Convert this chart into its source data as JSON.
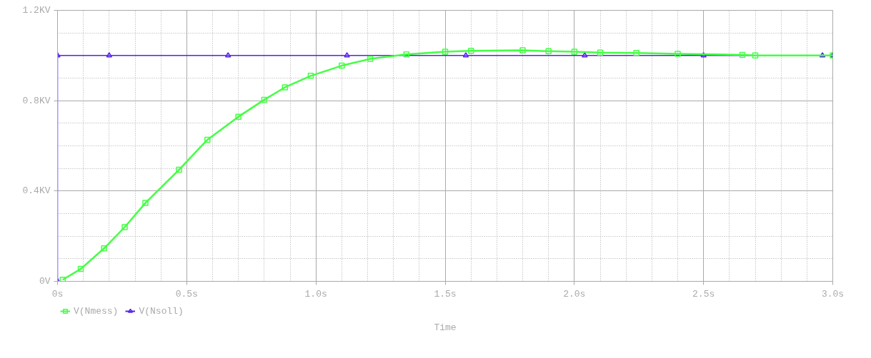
{
  "chart_data": {
    "type": "line",
    "xlabel": "Time",
    "xlim": [
      0,
      3.0
    ],
    "ylim": [
      0,
      1.2
    ],
    "xticks": [
      {
        "value": 0,
        "label": "0s"
      },
      {
        "value": 0.1,
        "label": null
      },
      {
        "value": 0.2,
        "label": null
      },
      {
        "value": 0.3,
        "label": null
      },
      {
        "value": 0.4,
        "label": null
      },
      {
        "value": 0.5,
        "label": "0.5s"
      },
      {
        "value": 0.6,
        "label": null
      },
      {
        "value": 0.7,
        "label": null
      },
      {
        "value": 0.8,
        "label": null
      },
      {
        "value": 0.9,
        "label": null
      },
      {
        "value": 1.0,
        "label": "1.0s"
      },
      {
        "value": 1.1,
        "label": null
      },
      {
        "value": 1.2,
        "label": null
      },
      {
        "value": 1.3,
        "label": null
      },
      {
        "value": 1.4,
        "label": null
      },
      {
        "value": 1.5,
        "label": "1.5s"
      },
      {
        "value": 1.6,
        "label": null
      },
      {
        "value": 1.7,
        "label": null
      },
      {
        "value": 1.8,
        "label": null
      },
      {
        "value": 1.9,
        "label": null
      },
      {
        "value": 2.0,
        "label": "2.0s"
      },
      {
        "value": 2.1,
        "label": null
      },
      {
        "value": 2.2,
        "label": null
      },
      {
        "value": 2.3,
        "label": null
      },
      {
        "value": 2.4,
        "label": null
      },
      {
        "value": 2.5,
        "label": "2.5s"
      },
      {
        "value": 2.6,
        "label": null
      },
      {
        "value": 2.7,
        "label": null
      },
      {
        "value": 2.8,
        "label": null
      },
      {
        "value": 2.9,
        "label": null
      },
      {
        "value": 3.0,
        "label": "3.0s"
      }
    ],
    "yticks": [
      {
        "value": 0,
        "label": "0V"
      },
      {
        "value": 0.1,
        "label": null
      },
      {
        "value": 0.2,
        "label": null
      },
      {
        "value": 0.3,
        "label": null
      },
      {
        "value": 0.4,
        "label": "0.4KV"
      },
      {
        "value": 0.5,
        "label": null
      },
      {
        "value": 0.6,
        "label": null
      },
      {
        "value": 0.7,
        "label": null
      },
      {
        "value": 0.8,
        "label": "0.8KV"
      },
      {
        "value": 0.9,
        "label": null
      },
      {
        "value": 1.0,
        "label": null
      },
      {
        "value": 1.1,
        "label": null
      },
      {
        "value": 1.2,
        "label": "1.2KV"
      }
    ],
    "grid": true,
    "legend": "bottom left",
    "series": [
      {
        "name": "V(Nmess)",
        "color": "#44ff44",
        "marker": "square",
        "x": [
          0.02,
          0.09,
          0.18,
          0.26,
          0.34,
          0.47,
          0.58,
          0.7,
          0.8,
          0.88,
          0.98,
          1.1,
          1.21,
          1.35,
          1.5,
          1.6,
          1.8,
          1.9,
          2.0,
          2.1,
          2.24,
          2.4,
          2.65,
          2.7,
          3.0
        ],
        "values": [
          0.007,
          0.055,
          0.146,
          0.24,
          0.347,
          0.494,
          0.627,
          0.729,
          0.804,
          0.859,
          0.91,
          0.955,
          0.985,
          1.005,
          1.017,
          1.021,
          1.023,
          1.019,
          1.017,
          1.013,
          1.011,
          1.007,
          1.003,
          1.0,
          1.0
        ]
      },
      {
        "name": "V(Nsoll)",
        "color": "#5522ee",
        "marker": "triangle",
        "x": [
          0,
          0,
          0.2,
          0.66,
          1.12,
          1.58,
          2.04,
          2.5,
          2.96,
          3.0
        ],
        "values": [
          0,
          1.0,
          1.0,
          1.0,
          1.0,
          1.0,
          1.0,
          1.0,
          1.0,
          1.0
        ]
      }
    ]
  }
}
